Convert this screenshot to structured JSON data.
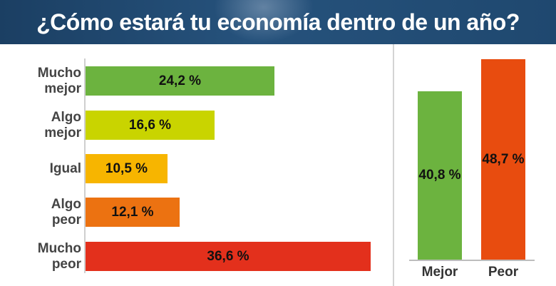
{
  "header": {
    "title": "¿Cómo estará tu economía dentro de un año?"
  },
  "chart_data": [
    {
      "type": "bar",
      "orientation": "horizontal",
      "categories": [
        "Mucho mejor",
        "Algo mejor",
        "Igual",
        "Algo peor",
        "Mucho peor"
      ],
      "values": [
        24.2,
        16.6,
        10.5,
        12.1,
        36.6
      ],
      "value_labels": [
        "24,2 %",
        "16,6 %",
        "10,5 %",
        "12,1 %",
        "36,6 %"
      ],
      "label_lines": [
        [
          "Mucho",
          "mejor"
        ],
        [
          "Algo",
          "mejor"
        ],
        [
          "Igual"
        ],
        [
          "Algo",
          "peor"
        ],
        [
          "Mucho",
          "peor"
        ]
      ],
      "colors": [
        "#6cb33f",
        "#c9d400",
        "#f7b500",
        "#ec7211",
        "#e3301c"
      ],
      "xlim": [
        0,
        37.5
      ],
      "grid": false,
      "legend": "none"
    },
    {
      "type": "bar",
      "orientation": "vertical",
      "categories": [
        "Mejor",
        "Peor"
      ],
      "values": [
        40.8,
        48.7
      ],
      "value_labels": [
        "40,8 %",
        "48,7 %"
      ],
      "colors": [
        "#6cb33f",
        "#e84c0f"
      ],
      "ylim": [
        0,
        49.5
      ],
      "grid": false,
      "legend": "none"
    }
  ]
}
